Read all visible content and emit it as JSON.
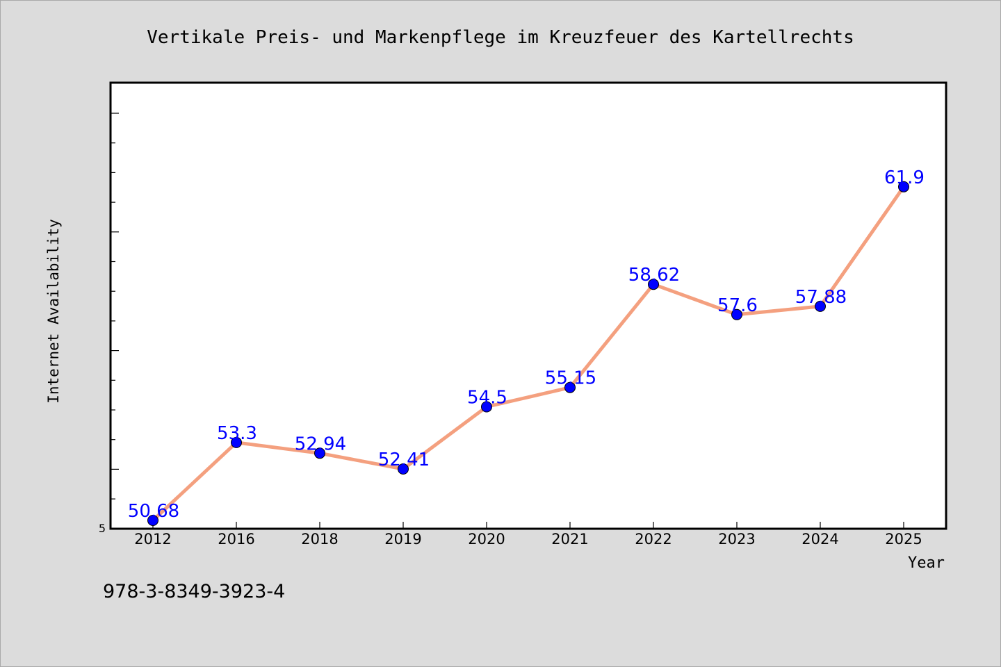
{
  "chart_data": {
    "type": "line",
    "title": "Vertikale Preis- und Markenpflege im Kreuzfeuer des Kartellrechts",
    "xlabel": "Year",
    "ylabel": "Internet Availability",
    "categories": [
      "2012",
      "2016",
      "2018",
      "2019",
      "2020",
      "2021",
      "2022",
      "2023",
      "2024",
      "2025"
    ],
    "series": [
      {
        "values": [
          50.68,
          53.3,
          52.94,
          52.41,
          54.5,
          55.15,
          58.62,
          57.6,
          57.88,
          61.9
        ],
        "labels": [
          "50.68",
          "53.3",
          "52.94",
          "52.41",
          "54.5",
          "55.15",
          "58.62",
          "57.6",
          "57.88",
          "61.9"
        ]
      }
    ],
    "ylim": [
      50.4,
      65.4
    ],
    "y_tick_label": "5",
    "grid": false,
    "colors": {
      "line": "#f4a07f",
      "marker": "#0000ff",
      "labels": "#0000ff"
    }
  },
  "footer": {
    "isbn": "978-3-8349-3923-4"
  }
}
